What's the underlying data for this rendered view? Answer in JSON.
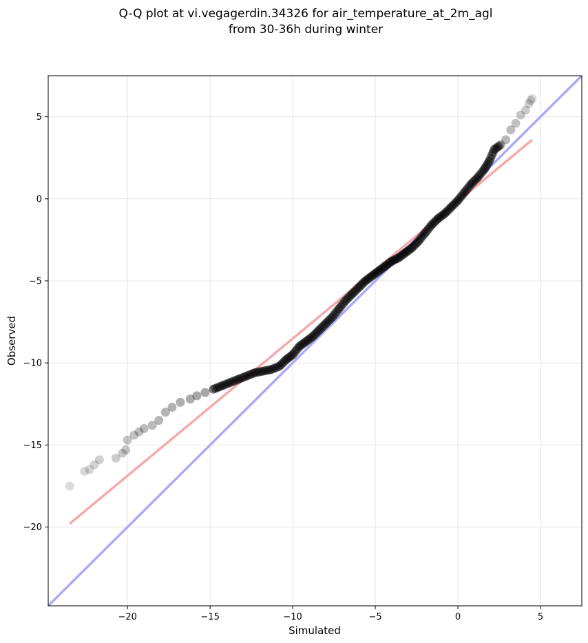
{
  "chart_data": {
    "type": "scatter",
    "title_line1": "Q-Q plot at vi.vegagerdin.34326 for air_temperature_at_2m_agl",
    "title_line2": "from 30-36h during winter",
    "xlabel": "Simulated",
    "ylabel": "Observed",
    "xlim": [
      -24.8,
      7.5
    ],
    "ylim": [
      -24.8,
      7.5
    ],
    "xticks": [
      -20,
      -15,
      -10,
      -5,
      0,
      5
    ],
    "yticks": [
      -20,
      -15,
      -10,
      -5,
      0,
      5
    ],
    "xtick_labels": [
      "−20",
      "−15",
      "−10",
      "−5",
      "0",
      "5"
    ],
    "ytick_labels": [
      "−20",
      "−15",
      "−10",
      "−5",
      "0",
      "5"
    ],
    "grid": true,
    "colors": {
      "points": "#000000",
      "identity_line": "#aaaaf5",
      "fit_line": "#f5a9a9",
      "dense_overlay": "#1a1a8c"
    },
    "series": [
      {
        "type": "line",
        "values_x": [
          -24.8,
          7.5
        ],
        "values_y": [
          -24.8,
          7.5
        ]
      },
      {
        "type": "line",
        "values_x": [
          -23.5,
          4.5
        ],
        "values_y": [
          -19.8,
          3.6
        ]
      },
      {
        "type": "scatter",
        "x": [
          -23.5,
          -22.6,
          -22.3,
          -22.0,
          -21.7,
          -20.7,
          -20.3,
          -20.1,
          -20.0,
          -19.6,
          -19.3,
          -19.0,
          -18.5,
          -18.1,
          -17.7,
          -17.3,
          -16.8,
          -16.2,
          -15.8,
          -15.3,
          -14.8,
          -14.3,
          -13.8,
          -13.3,
          -12.8,
          -12.3,
          -11.8,
          -11.3,
          -10.8,
          -10.4,
          -10.0,
          -9.6,
          -9.2,
          -8.8,
          -8.4,
          -8.0,
          -7.6,
          -7.2,
          -6.8,
          -6.4,
          -6.0,
          -5.6,
          -5.2,
          -4.8,
          -4.4,
          -4.0,
          -3.6,
          -3.2,
          -2.8,
          -2.4,
          -2.0,
          -1.6,
          -1.2,
          -0.8,
          -0.4,
          0.0,
          0.4,
          0.8,
          1.2,
          1.6,
          1.9,
          2.2,
          2.6,
          2.9,
          3.2,
          3.5,
          3.8,
          4.1,
          4.3,
          4.4,
          4.5
        ],
        "y": [
          -17.5,
          -16.6,
          -16.5,
          -16.2,
          -15.9,
          -15.8,
          -15.5,
          -15.3,
          -14.7,
          -14.4,
          -14.2,
          -14.0,
          -13.8,
          -13.5,
          -13.0,
          -12.7,
          -12.4,
          -12.2,
          -12.0,
          -11.8,
          -11.6,
          -11.4,
          -11.2,
          -11.0,
          -10.8,
          -10.6,
          -10.5,
          -10.4,
          -10.2,
          -9.8,
          -9.5,
          -9.0,
          -8.7,
          -8.4,
          -8.0,
          -7.6,
          -7.2,
          -6.7,
          -6.2,
          -5.8,
          -5.4,
          -5.0,
          -4.7,
          -4.4,
          -4.1,
          -3.8,
          -3.6,
          -3.3,
          -3.0,
          -2.6,
          -2.1,
          -1.6,
          -1.2,
          -0.9,
          -0.5,
          -0.1,
          0.4,
          0.9,
          1.3,
          1.8,
          2.3,
          3.0,
          3.3,
          3.6,
          4.2,
          4.6,
          5.1,
          5.4,
          5.8,
          6.0,
          6.1
        ]
      }
    ]
  }
}
